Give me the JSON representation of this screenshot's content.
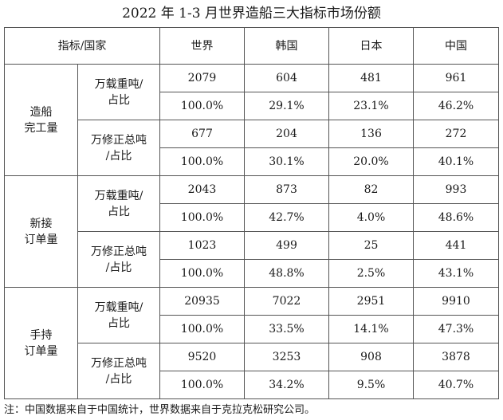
{
  "title": "2022 年 1-3 月世界造船三大指标市场份额",
  "header": [
    "指标/国家",
    "世界",
    "韩国",
    "日本",
    "中国"
  ],
  "sections": [
    {
      "category": [
        "造船",
        "完工量"
      ],
      "groups": [
        {
          "unit": [
            "万载重吨/",
            "占比"
          ],
          "volume": [
            "2079",
            "604",
            "481",
            "961"
          ],
          "share": [
            "100.0%",
            "29.1%",
            "23.1%",
            "46.2%"
          ]
        },
        {
          "unit": [
            "万修正总吨",
            "/占比"
          ],
          "volume": [
            "677",
            "204",
            "136",
            "272"
          ],
          "share": [
            "100.0%",
            "30.1%",
            "20.0%",
            "40.1%"
          ]
        }
      ]
    },
    {
      "category": [
        "新接",
        "订单量"
      ],
      "groups": [
        {
          "unit": [
            "万载重吨/",
            "占比"
          ],
          "volume": [
            "2043",
            "873",
            "82",
            "993"
          ],
          "share": [
            "100.0%",
            "42.7%",
            "4.0%",
            "48.6%"
          ]
        },
        {
          "unit": [
            "万修正总吨",
            "/占比"
          ],
          "volume": [
            "1023",
            "499",
            "25",
            "441"
          ],
          "share": [
            "100.0%",
            "48.8%",
            "2.5%",
            "43.1%"
          ]
        }
      ]
    },
    {
      "category": [
        "手持",
        "订单量"
      ],
      "groups": [
        {
          "unit": [
            "万载重吨/",
            "占比"
          ],
          "volume": [
            "20935",
            "7022",
            "2951",
            "9910"
          ],
          "share": [
            "100.0%",
            "33.5%",
            "14.1%",
            "47.3%"
          ]
        },
        {
          "unit": [
            "万修正总吨",
            "/占比"
          ],
          "volume": [
            "9520",
            "3253",
            "908",
            "3878"
          ],
          "share": [
            "100.0%",
            "34.2%",
            "9.5%",
            "40.7%"
          ]
        }
      ]
    }
  ],
  "note": "注：中国数据来自于中国统计，世界数据来自于克拉克松研究公司。"
}
